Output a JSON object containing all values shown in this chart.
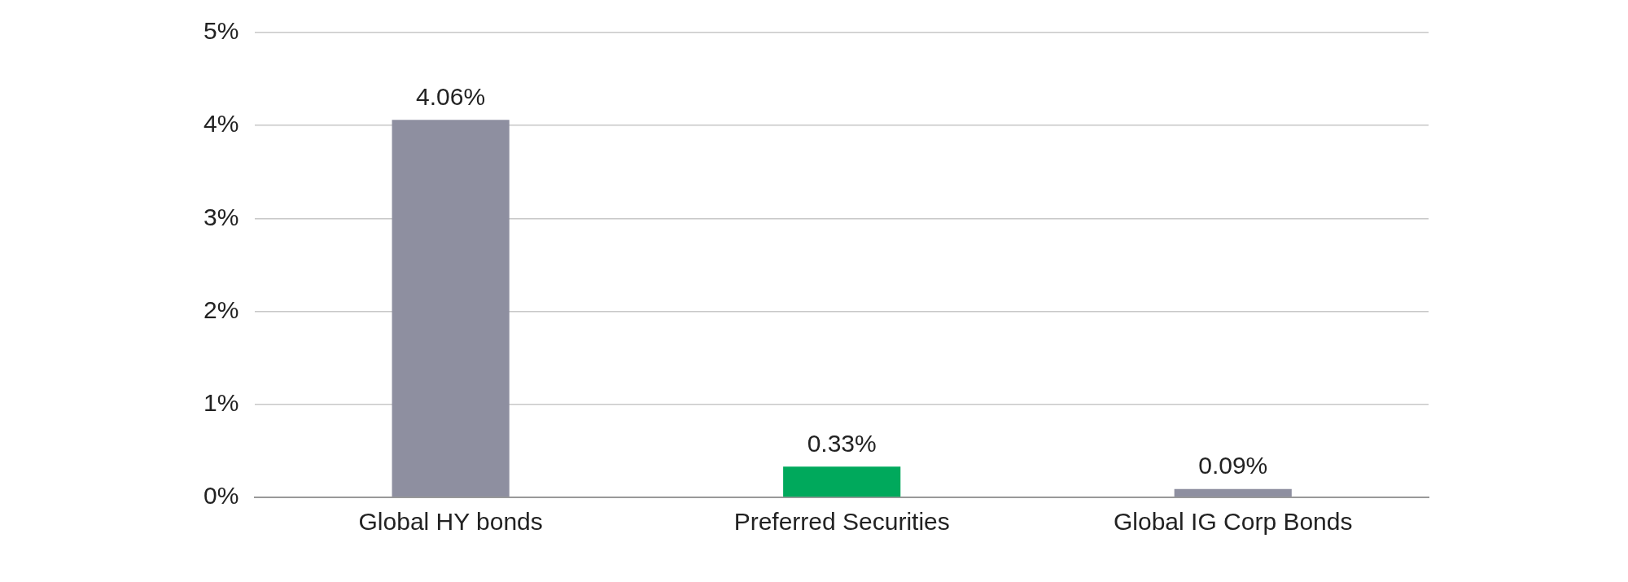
{
  "chart_data": {
    "type": "bar",
    "categories": [
      "Global HY bonds",
      "Preferred Securities",
      "Global IG Corp Bonds"
    ],
    "values": [
      4.06,
      0.33,
      0.09
    ],
    "colors": [
      "#8e8fa0",
      "#00a95c",
      "#8e8fa0"
    ],
    "value_labels": [
      "4.06%",
      "0.33%",
      "0.09%"
    ],
    "ylim": [
      0,
      5
    ],
    "yticks": [
      {
        "value": 0,
        "label": "0%"
      },
      {
        "value": 1,
        "label": "1%"
      },
      {
        "value": 2,
        "label": "2%"
      },
      {
        "value": 3,
        "label": "3%"
      },
      {
        "value": 4,
        "label": "4%"
      },
      {
        "value": 5,
        "label": "5%"
      }
    ],
    "grid": "y"
  }
}
